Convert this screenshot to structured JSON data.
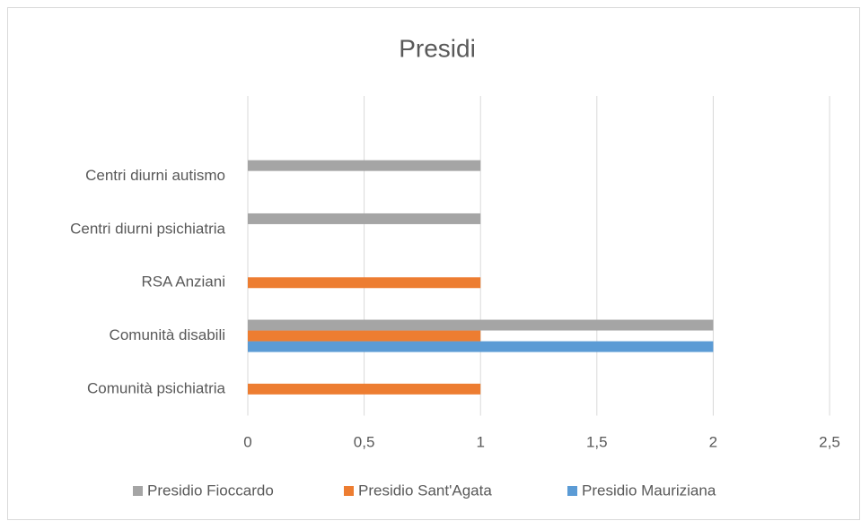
{
  "chart_data": {
    "type": "bar",
    "orientation": "horizontal",
    "title": "Presidi",
    "categories": [
      "Comunità psichiatria",
      "Comunità disabili",
      "RSA Anziani",
      "Centri diurni psichiatria",
      "Centri diurni autismo"
    ],
    "series": [
      {
        "name": "Presidio Mauriziana",
        "color": "#5b9bd5",
        "values": [
          null,
          2,
          null,
          null,
          null
        ]
      },
      {
        "name": "Presidio Sant'Agata",
        "color": "#ed7d31",
        "values": [
          1,
          1,
          1,
          null,
          null
        ]
      },
      {
        "name": "Presidio Fioccardo",
        "color": "#a5a5a5",
        "values": [
          null,
          2,
          null,
          1,
          1
        ]
      }
    ],
    "xlim": [
      0,
      2.5
    ],
    "xticks": [
      0,
      {
        "value": 0.5,
        "label": "0,5"
      },
      1,
      {
        "value": 1.5,
        "label": "1,5"
      },
      2,
      {
        "value": 2.5,
        "label": "2,5"
      }
    ],
    "grid": true,
    "legend": "bottom"
  }
}
